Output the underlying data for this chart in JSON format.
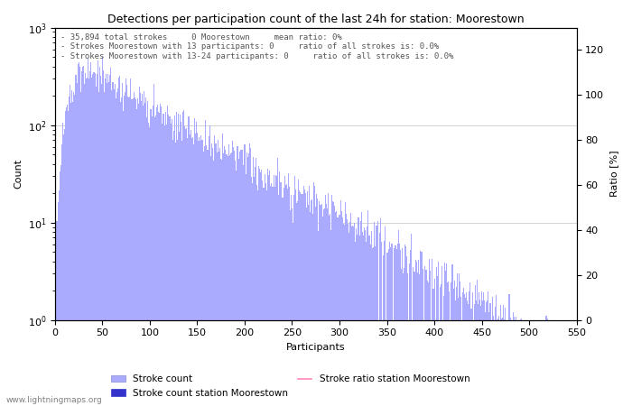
{
  "title": "Detections per participation count of the last 24h for station: Moorestown",
  "xlabel": "Participants",
  "ylabel_left": "Count",
  "ylabel_right": "Ratio [%]",
  "annotation_lines": [
    "- 35,894 total strokes     0 Moorestown     mean ratio: 0%",
    "- Strokes Moorestown with 13 participants: 0     ratio of all strokes is: 0.0%",
    "- Strokes Moorestown with 13-24 participants: 0     ratio of all strokes is: 0.0%"
  ],
  "bar_color": "#aaaaff",
  "station_bar_color": "#3333cc",
  "ratio_line_color": "#ff88bb",
  "watermark": "www.lightningmaps.org",
  "x_max": 540,
  "y_log_min": 1,
  "y_log_max": 1000,
  "y_right_max": 130,
  "right_ticks": [
    0,
    20,
    40,
    60,
    80,
    100,
    120
  ],
  "x_ticks": [
    0,
    50,
    100,
    150,
    200,
    250,
    300,
    350,
    400,
    450,
    500,
    550
  ],
  "legend_entries": [
    "Stroke count",
    "Stroke count station Moorestown",
    "Stroke ratio station Moorestown"
  ]
}
